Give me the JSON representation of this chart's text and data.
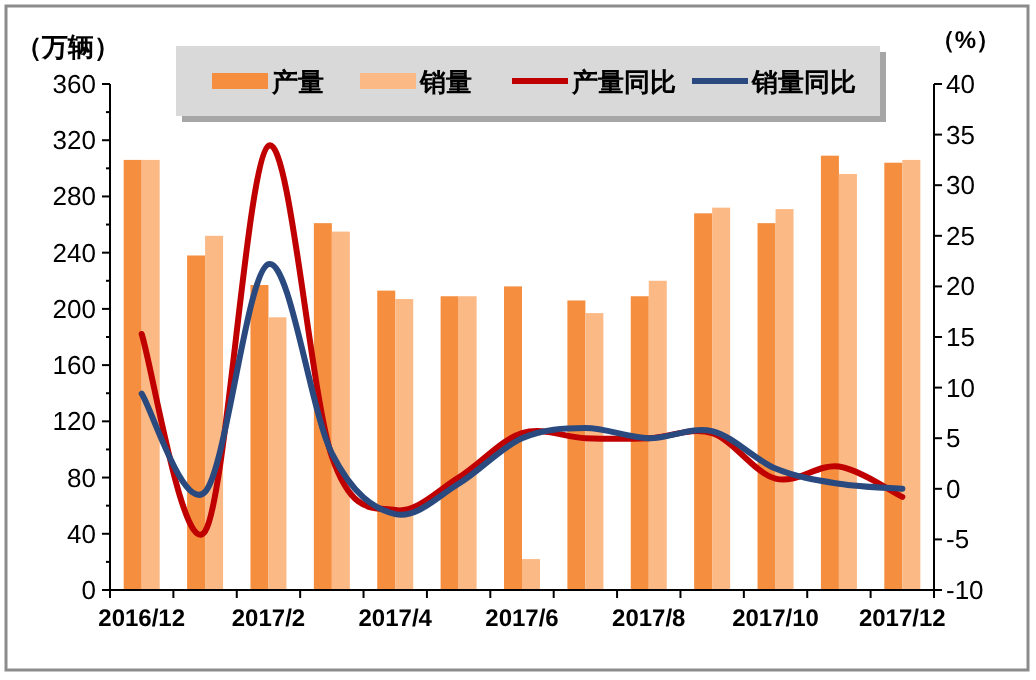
{
  "chart_data": {
    "type": "bar",
    "ylabel": "（万辆）",
    "y2label": "（%）",
    "categories": [
      "2016/12",
      null,
      "2017/2",
      null,
      "2017/4",
      null,
      "2017/6",
      null,
      "2017/8",
      null,
      "2017/10",
      null,
      "2017/12"
    ],
    "series": [
      {
        "name": "产量",
        "color": "#f58f3f",
        "values": [
          306,
          238,
          217,
          261,
          213,
          209,
          216,
          206,
          209,
          268,
          261,
          309,
          304
        ]
      },
      {
        "name": "销量",
        "color": "#fbb985",
        "values": [
          306,
          252,
          194,
          255,
          207,
          209,
          22,
          197,
          220,
          272,
          271,
          296,
          306
        ]
      },
      {
        "name": "产量同比",
        "type": "line",
        "axis": "y2",
        "color": "#c00000",
        "values": [
          15.3,
          -4.2,
          33.9,
          3.2,
          -2.1,
          1.1,
          5.5,
          5,
          5,
          5.5,
          1,
          2.2,
          -0.8
        ]
      },
      {
        "name": "销量同比",
        "type": "line",
        "axis": "y2",
        "color": "#2a4a7f",
        "values": [
          9.4,
          -0.3,
          22.2,
          3.5,
          -2.5,
          0.5,
          5,
          6,
          5,
          5.7,
          2,
          0.5,
          0
        ]
      }
    ],
    "ylim": [
      0,
      360
    ],
    "yticks": [
      0,
      40,
      80,
      120,
      160,
      200,
      240,
      280,
      320,
      360
    ],
    "y2lim": [
      -10,
      40
    ],
    "y2ticks": [
      -10,
      -5,
      0,
      5,
      10,
      15,
      20,
      25,
      30,
      35,
      40
    ],
    "legend": "top",
    "marker": "none",
    "line_style": "solid"
  }
}
